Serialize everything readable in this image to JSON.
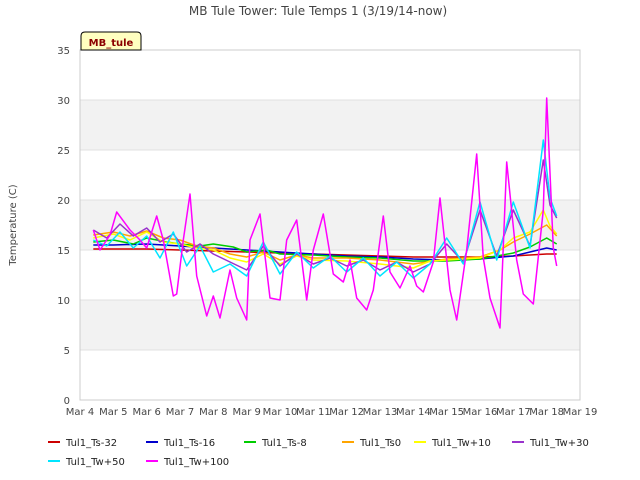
{
  "chart_data": {
    "type": "line",
    "title": "MB Tule Tower: Tule Temps 1 (3/19/14-now)",
    "xlabel": "",
    "ylabel": "Temperature (C)",
    "station_label": "MB_tule",
    "xlim": [
      4,
      19
    ],
    "ylim": [
      0,
      35
    ],
    "x_ticks": [
      4,
      5,
      6,
      7,
      8,
      9,
      10,
      11,
      12,
      13,
      14,
      15,
      16,
      17,
      18,
      19
    ],
    "x_tick_labels": [
      "Mar 4",
      "Mar 5",
      "Mar 6",
      "Mar 7",
      "Mar 8",
      "Mar 9",
      "Mar 10",
      "Mar 11",
      "Mar 12",
      "Mar 13",
      "Mar 14",
      "Mar 15",
      "Mar 16",
      "Mar 17",
      "Mar 18",
      "Mar 19"
    ],
    "y_ticks": [
      0,
      5,
      10,
      15,
      20,
      25,
      30,
      35
    ],
    "y_tick_labels": [
      "0",
      "5",
      "10",
      "15",
      "20",
      "25",
      "30",
      "35"
    ],
    "colors": {
      "background_band": "#f2f2f2",
      "grid": "#e0e0e0",
      "station_box_fill": "#ffffc0"
    },
    "series": [
      {
        "name": "Tul1_Ts-32",
        "color": "#cc0000",
        "x": [
          4.4,
          5,
          6,
          7,
          8,
          9,
          10,
          11,
          12,
          13,
          14,
          15,
          16,
          17,
          18,
          18.3
        ],
        "y": [
          15.1,
          15.1,
          15.1,
          15.0,
          14.9,
          14.8,
          14.7,
          14.6,
          14.5,
          14.4,
          14.3,
          14.3,
          14.3,
          14.4,
          14.6,
          14.6
        ]
      },
      {
        "name": "Tul1_Ts-16",
        "color": "#0000cc",
        "x": [
          4.4,
          5,
          6,
          7,
          8,
          9,
          10,
          11,
          12,
          13,
          14,
          15,
          16,
          17,
          17.5,
          18,
          18.3
        ],
        "y": [
          15.5,
          15.5,
          15.6,
          15.4,
          15.2,
          15.0,
          14.8,
          14.6,
          14.4,
          14.3,
          14.1,
          14.0,
          14.1,
          14.4,
          14.8,
          15.2,
          15.0
        ]
      },
      {
        "name": "Tul1_Ts-8",
        "color": "#00cc00",
        "x": [
          4.4,
          5,
          5.6,
          6,
          6.6,
          7,
          7.6,
          8,
          8.6,
          9,
          9.6,
          10,
          11,
          12,
          13,
          14,
          15,
          16,
          17,
          17.5,
          18,
          18.3
        ],
        "y": [
          15.8,
          16.0,
          15.6,
          16.2,
          15.8,
          15.6,
          15.4,
          15.6,
          15.3,
          14.8,
          15.0,
          14.6,
          14.5,
          14.3,
          14.2,
          13.9,
          13.9,
          14.1,
          14.7,
          15.3,
          16.2,
          15.6
        ]
      },
      {
        "name": "Tul1_Ts0",
        "color": "#ffa500",
        "x": [
          4.4,
          5,
          5.5,
          6,
          6.5,
          7,
          7.5,
          8,
          8.5,
          9,
          9.5,
          10,
          10.5,
          11,
          12,
          13,
          14,
          15,
          16,
          16.6,
          17,
          17.5,
          18,
          18.3
        ],
        "y": [
          16.5,
          16.8,
          16.4,
          16.9,
          16.2,
          16.0,
          15.4,
          15.2,
          14.6,
          14.3,
          14.8,
          14.0,
          14.5,
          14.2,
          14.2,
          14.0,
          13.6,
          14.1,
          14.3,
          15.0,
          15.8,
          16.6,
          17.5,
          16.4
        ]
      },
      {
        "name": "Tul1_Tw+10",
        "color": "#ffff00",
        "x": [
          4.4,
          5,
          5.5,
          6,
          6.5,
          7,
          7.5,
          8,
          8.5,
          9,
          9.5,
          10,
          10.5,
          11,
          12,
          13,
          14,
          14.5,
          15,
          16,
          16.6,
          17,
          17.5,
          17.9,
          18.1,
          18.3
        ],
        "y": [
          16.2,
          16.6,
          16.0,
          16.8,
          15.8,
          15.6,
          15.2,
          15.0,
          14.2,
          13.8,
          14.6,
          13.6,
          14.4,
          14.0,
          13.9,
          13.6,
          13.2,
          13.9,
          14.0,
          14.2,
          15.0,
          16.2,
          16.8,
          19.0,
          17.4,
          16.6
        ]
      },
      {
        "name": "Tul1_Tw+30",
        "color": "#9932cc",
        "x": [
          4.4,
          4.8,
          5.2,
          5.6,
          6,
          6.4,
          6.8,
          7.2,
          7.6,
          8,
          8.5,
          9,
          9.5,
          10,
          10.5,
          11,
          11.5,
          12,
          12.5,
          13,
          13.5,
          14,
          14.5,
          15,
          15.5,
          16,
          16.5,
          17,
          17.5,
          17.9,
          18.1,
          18.3
        ],
        "y": [
          17.0,
          16.2,
          17.6,
          16.4,
          17.2,
          15.8,
          16.6,
          14.8,
          15.6,
          14.6,
          13.8,
          13.0,
          15.4,
          13.4,
          14.6,
          13.6,
          14.2,
          13.4,
          14.0,
          13.0,
          13.8,
          12.8,
          13.6,
          15.6,
          13.8,
          19.0,
          14.4,
          19.0,
          15.4,
          24.0,
          19.5,
          18.2
        ]
      },
      {
        "name": "Tul1_Tw+50",
        "color": "#00e5ff",
        "x": [
          4.4,
          4.8,
          5.2,
          5.6,
          6,
          6.4,
          6.8,
          7.2,
          7.6,
          8,
          8.5,
          9,
          9.5,
          10,
          10.5,
          11,
          11.5,
          12,
          12.5,
          13,
          13.5,
          14,
          14.5,
          15,
          15.5,
          16,
          16.5,
          17,
          17.5,
          17.9,
          18.1,
          18.3
        ],
        "y": [
          16.0,
          15.4,
          16.8,
          15.2,
          16.4,
          14.2,
          16.8,
          13.4,
          15.4,
          12.8,
          13.6,
          12.4,
          15.8,
          12.6,
          14.8,
          13.2,
          14.4,
          12.8,
          14.2,
          12.4,
          13.8,
          12.2,
          13.6,
          16.2,
          13.6,
          19.8,
          14.0,
          19.8,
          15.2,
          26.0,
          20.2,
          18.4
        ]
      },
      {
        "name": "Tul1_Tw+100",
        "color": "#ff00ff",
        "x": [
          4.4,
          4.6,
          4.9,
          5.1,
          5.5,
          5.8,
          6,
          6.3,
          6.5,
          6.8,
          6.9,
          7.1,
          7.3,
          7.5,
          7.8,
          8,
          8.2,
          8.5,
          8.7,
          9,
          9.1,
          9.4,
          9.7,
          10,
          10.2,
          10.5,
          10.8,
          11,
          11.3,
          11.6,
          11.9,
          12.1,
          12.3,
          12.6,
          12.8,
          13.1,
          13.3,
          13.6,
          13.9,
          14.1,
          14.3,
          14.6,
          14.8,
          15.1,
          15.3,
          15.6,
          15.9,
          16.1,
          16.3,
          16.6,
          16.8,
          17.1,
          17.3,
          17.6,
          17.9,
          18.0,
          18.2,
          18.3
        ],
        "y": [
          17.0,
          15.0,
          16.5,
          18.8,
          17.0,
          16.0,
          15.2,
          18.4,
          16.0,
          10.4,
          10.6,
          16.0,
          20.6,
          12.4,
          8.4,
          10.4,
          8.2,
          13.0,
          10.2,
          8.0,
          16.0,
          18.6,
          10.2,
          10.0,
          16.0,
          18.0,
          10.0,
          15.0,
          18.6,
          12.6,
          11.8,
          14.0,
          10.2,
          9.0,
          11.0,
          18.4,
          12.8,
          11.2,
          13.4,
          11.4,
          10.8,
          13.8,
          20.2,
          11.0,
          8.0,
          15.0,
          24.6,
          14.2,
          10.2,
          7.2,
          23.8,
          14.0,
          10.6,
          9.6,
          19.0,
          30.2,
          15.2,
          13.4
        ]
      }
    ]
  }
}
